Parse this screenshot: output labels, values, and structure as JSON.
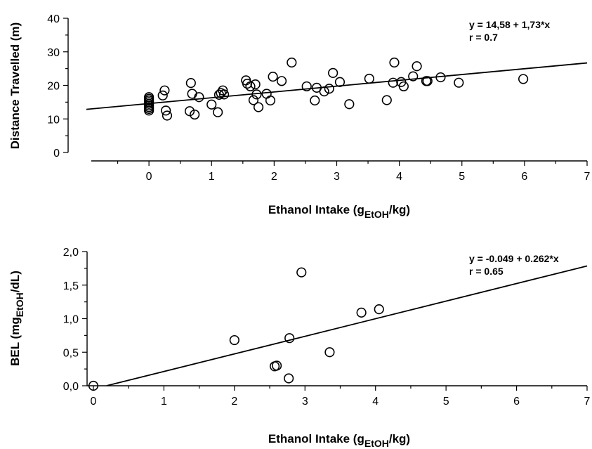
{
  "chart_data": [
    {
      "type": "scatter",
      "xlabel": "Ethanol Intake (g",
      "xlabel_sub": "EtOH",
      "xlabel_end": "/kg)",
      "ylabel": "Distance Travelled (m)",
      "xlim": [
        -1,
        7
      ],
      "ylim": [
        0,
        40
      ],
      "xticks": [
        "0",
        "1",
        "2",
        "3",
        "4",
        "5",
        "6",
        "7"
      ],
      "yticks": [
        "0",
        "10",
        "20",
        "30",
        "40"
      ],
      "equation": "y = 14,58 + 1,73*x",
      "r": "r = 0.7",
      "fit": {
        "intercept": 14.58,
        "slope": 1.73
      },
      "points": [
        [
          0,
          12.5
        ],
        [
          0,
          13
        ],
        [
          0,
          13.5
        ],
        [
          0,
          14
        ],
        [
          0,
          14.5
        ],
        [
          0,
          15
        ],
        [
          0,
          15.5
        ],
        [
          0,
          16
        ],
        [
          0,
          16.5
        ],
        [
          0.22,
          17
        ],
        [
          0.25,
          18.5
        ],
        [
          0.27,
          12.5
        ],
        [
          0.29,
          11
        ],
        [
          0.65,
          12.3
        ],
        [
          0.67,
          20.7
        ],
        [
          0.69,
          17.5
        ],
        [
          0.73,
          11.3
        ],
        [
          0.8,
          16.5
        ],
        [
          1.0,
          14.3
        ],
        [
          1.1,
          12
        ],
        [
          1.12,
          17.2
        ],
        [
          1.15,
          17.7
        ],
        [
          1.18,
          18.5
        ],
        [
          1.2,
          17.3
        ],
        [
          1.55,
          21.5
        ],
        [
          1.57,
          20.5
        ],
        [
          1.62,
          19.7
        ],
        [
          1.67,
          15.6
        ],
        [
          1.7,
          20.3
        ],
        [
          1.72,
          17.3
        ],
        [
          1.75,
          13.5
        ],
        [
          1.88,
          17.5
        ],
        [
          1.94,
          15.5
        ],
        [
          1.98,
          22.6
        ],
        [
          2.12,
          21.3
        ],
        [
          2.28,
          26.8
        ],
        [
          2.52,
          19.7
        ],
        [
          2.65,
          15.5
        ],
        [
          2.68,
          19.3
        ],
        [
          2.8,
          18.2
        ],
        [
          2.88,
          19
        ],
        [
          2.94,
          23.7
        ],
        [
          3.05,
          21
        ],
        [
          3.2,
          14.4
        ],
        [
          3.52,
          22
        ],
        [
          3.8,
          15.6
        ],
        [
          3.9,
          20.8
        ],
        [
          3.92,
          26.8
        ],
        [
          4.03,
          21
        ],
        [
          4.07,
          19.7
        ],
        [
          4.22,
          22.7
        ],
        [
          4.28,
          25.7
        ],
        [
          4.43,
          21.3
        ],
        [
          4.45,
          21.3
        ],
        [
          4.66,
          22.4
        ],
        [
          4.95,
          20.8
        ],
        [
          5.98,
          21.9
        ]
      ]
    },
    {
      "type": "scatter",
      "xlabel": "Ethanol Intake (g",
      "xlabel_sub": "EtOH",
      "xlabel_end": "/kg)",
      "ylabel": "BEL (mg",
      "ylabel_sub": "EtOH",
      "ylabel_end": "/dL)",
      "xlim": [
        0,
        7
      ],
      "ylim": [
        0,
        2
      ],
      "xticks": [
        "0",
        "1",
        "2",
        "3",
        "4",
        "5",
        "6",
        "7"
      ],
      "yticks": [
        "0,0",
        "0,5",
        "1,0",
        "1,5",
        "2,0"
      ],
      "equation": "y = -0.049 + 0.262*x",
      "r": "r = 0.65",
      "fit": {
        "intercept": -0.049,
        "slope": 0.262,
        "x_start": 0.19
      },
      "points": [
        [
          0,
          0
        ],
        [
          2.0,
          0.68
        ],
        [
          2.57,
          0.29
        ],
        [
          2.6,
          0.3
        ],
        [
          2.77,
          0.11
        ],
        [
          2.78,
          0.71
        ],
        [
          2.95,
          1.69
        ],
        [
          3.35,
          0.5
        ],
        [
          3.8,
          1.09
        ],
        [
          4.05,
          1.14
        ]
      ]
    }
  ]
}
